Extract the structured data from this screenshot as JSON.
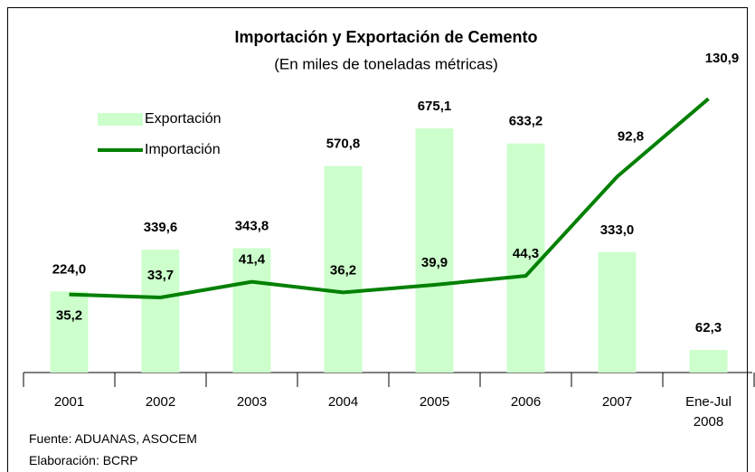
{
  "chart_data": {
    "type": "bar-line",
    "title": "Importación y Exportación de Cemento",
    "subtitle": "(En miles de toneladas métricas)",
    "categories": [
      "2001",
      "2002",
      "2003",
      "2004",
      "2005",
      "2006",
      "2007",
      "Ene-Jul 2008"
    ],
    "series": [
      {
        "name": "Exportación",
        "type": "bar",
        "color": "#ccffcc",
        "values": [
          224.0,
          339.6,
          343.8,
          570.8,
          675.1,
          633.2,
          333.0,
          62.3
        ],
        "value_labels": [
          "224,0",
          "339,6",
          "343,8",
          "570,8",
          "675,1",
          "633,2",
          "333,0",
          "62,3"
        ]
      },
      {
        "name": "Importación",
        "type": "line",
        "color": "#008000",
        "axis": "y2",
        "values": [
          35.2,
          33.7,
          41.4,
          36.2,
          39.9,
          44.3,
          92.8,
          130.9
        ],
        "value_labels": [
          "35,2",
          "33,7",
          "41,4",
          "36,2",
          "39,9",
          "44,3",
          "92,8",
          "130,9"
        ]
      }
    ],
    "ylim": [
      0,
      780
    ],
    "y2lim": [
      -3,
      135
    ],
    "legend": "upper left",
    "notes": [
      "Fuente: ADUANAS, ASOCEM",
      "Elaboración: BCRP"
    ]
  }
}
